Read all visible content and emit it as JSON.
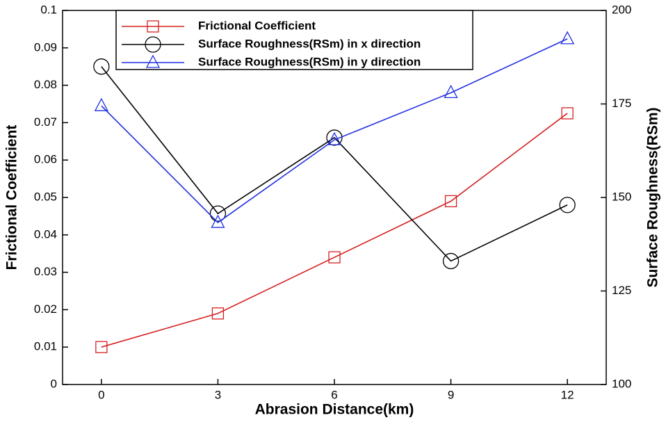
{
  "chart_data": {
    "type": "line",
    "x_label": "Abrasion Distance(km)",
    "y_label": "Frictional Coefficient",
    "y2_label": "Surface Roughness(RSm)",
    "x": [
      0,
      3,
      6,
      9,
      12
    ],
    "xlim": [
      -1,
      13
    ],
    "xticks": [
      0,
      3,
      6,
      9,
      12
    ],
    "ylim": [
      0,
      0.1
    ],
    "yticks": [
      0,
      0.01,
      0.02,
      0.03,
      0.04,
      0.05,
      0.06,
      0.07,
      0.08,
      0.09,
      0.1
    ],
    "y2lim": [
      100,
      200
    ],
    "y2ticks": [
      100,
      125,
      150,
      175,
      200
    ],
    "legend": "top",
    "series": [
      {
        "name": "Frictional Coefficient",
        "color": "#d42020",
        "marker": "square",
        "values": [
          0.01,
          0.019,
          0.034,
          0.049,
          0.0725
        ]
      },
      {
        "name": "Surface Roughness(RSm) in x direction",
        "color": "#000000",
        "marker": "circle",
        "axis": "y2",
        "values": [
          185,
          145.7,
          166,
          133,
          148
        ]
      },
      {
        "name": "Surface Roughness(RSm) in y direction",
        "color": "#1f2fe0",
        "marker": "triangle",
        "axis": "y2",
        "values": [
          174.5,
          143.3,
          165.4,
          178,
          192.4
        ]
      }
    ]
  }
}
